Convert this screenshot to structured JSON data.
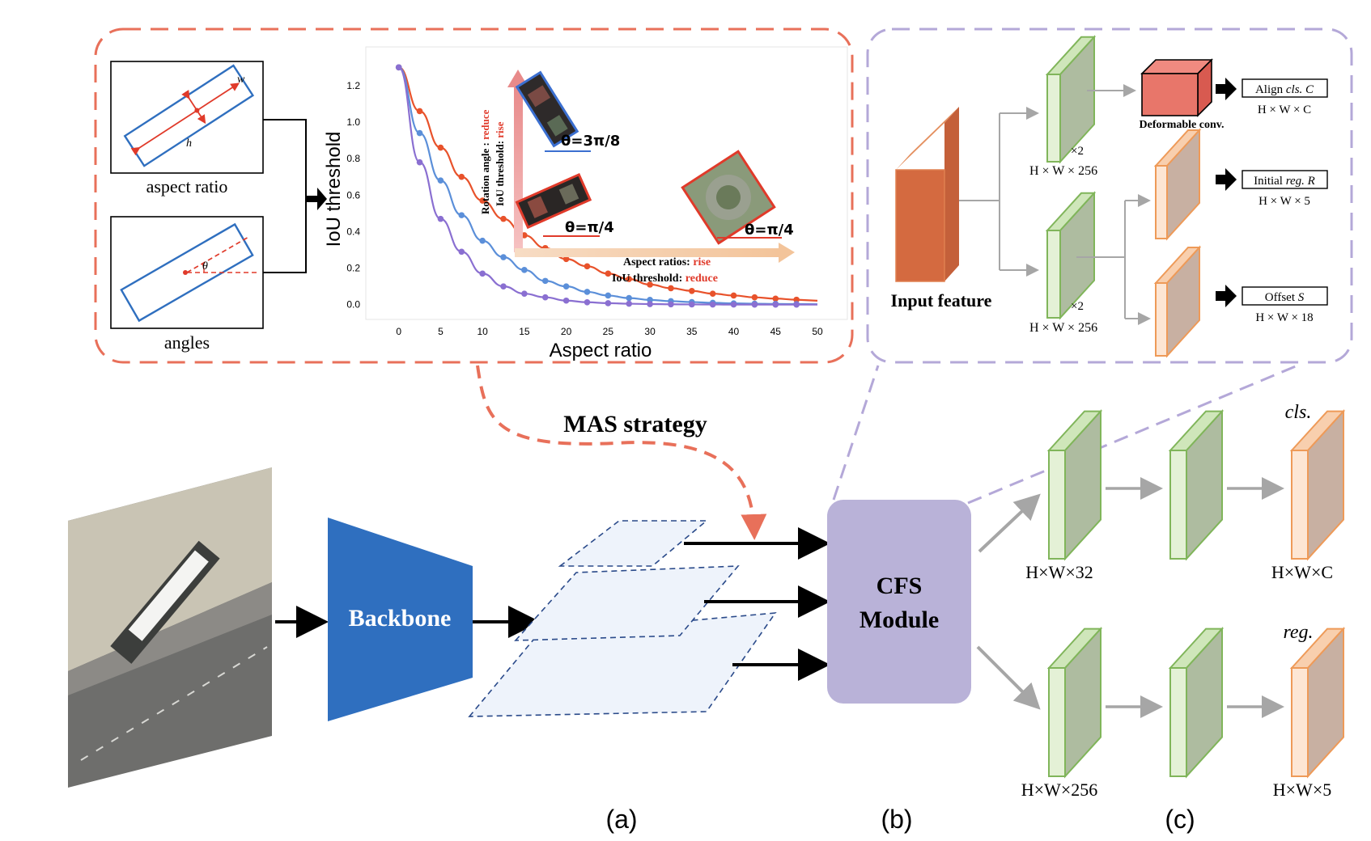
{
  "mas_panel": {
    "aspect_ratio_label": "aspect ratio",
    "angles_label": "angles",
    "box_w": "w",
    "box_h": "h",
    "theta": "θ",
    "rot_label_1": "Rotation angle : ",
    "rot_label_1_red": "reduce",
    "rot_label_2": "IoU threshold: ",
    "rot_label_2_red": "rise",
    "ar_label_1": "Aspect ratios: ",
    "ar_label_1_red": "rise",
    "ar_label_2": "IoU threshold: ",
    "ar_label_2_red": "reduce",
    "theta_1": "θ=3π/8",
    "theta_2": "θ=π/4",
    "theta_3": "θ=π/4"
  },
  "chart_data": {
    "type": "line",
    "xlabel": "Aspect ratio",
    "ylabel": "IoU threshold",
    "xlim": [
      -2,
      50
    ],
    "ylim": [
      -0.05,
      1.35
    ],
    "xticks": [
      "0",
      "5",
      "10",
      "15",
      "20",
      "25",
      "30",
      "35",
      "40",
      "45",
      "50"
    ],
    "yticks": [
      "0.0",
      "0.2",
      "0.4",
      "0.6",
      "0.8",
      "1.0",
      "1.2"
    ],
    "grid": false,
    "x": [
      0,
      2.5,
      5,
      7.5,
      10,
      12.5,
      15,
      17.5,
      20,
      22.5,
      25,
      27.5,
      30,
      32.5,
      35,
      37.5,
      40,
      42.5,
      45,
      47.5
    ],
    "series": [
      {
        "color": "#e8522b",
        "values": [
          1.3,
          1.06,
          0.86,
          0.7,
          0.57,
          0.47,
          0.38,
          0.31,
          0.25,
          0.21,
          0.17,
          0.14,
          0.11,
          0.09,
          0.075,
          0.06,
          0.05,
          0.04,
          0.033,
          0.027
        ]
      },
      {
        "color": "#5b8fd9",
        "values": [
          1.3,
          0.94,
          0.68,
          0.49,
          0.35,
          0.26,
          0.19,
          0.13,
          0.1,
          0.07,
          0.05,
          0.036,
          0.026,
          0.019,
          0.014,
          0.01,
          0.007,
          0.005,
          0.004,
          0.003
        ]
      },
      {
        "color": "#8a6fd1",
        "values": [
          1.3,
          0.78,
          0.47,
          0.29,
          0.17,
          0.1,
          0.06,
          0.04,
          0.022,
          0.013,
          0.008,
          0.005,
          0.003,
          0.002,
          0.0012,
          0.0007,
          0.0004,
          0.0003,
          0.0002,
          0.0001
        ]
      }
    ]
  },
  "cfs_panel": {
    "input_feature": "Input feature",
    "x2_a": "×2",
    "x2_b": "×2",
    "dim_top": "H × W × 256",
    "dim_bottom": "H × W × 256",
    "deformable": "Deformable conv.",
    "align_prefix": "Align ",
    "align_italic": "cls. C",
    "align_dim": "H × W × C",
    "initial_prefix": "Initial ",
    "initial_italic": "reg. R",
    "initial_dim": "H × W × 5",
    "offset_prefix": "Offset ",
    "offset_italic": "S",
    "offset_dim": "H × W × 18"
  },
  "main": {
    "mas_strategy": "MAS strategy",
    "backbone": "Backbone",
    "cfs_line1": "CFS",
    "cfs_line2": "Module"
  },
  "heads": {
    "cls_label": "cls.",
    "reg_label": "reg.",
    "dim_1": "H×W×32",
    "dim_2": "H×W×C",
    "dim_3": "H×W×256",
    "dim_4": "H×W×5"
  },
  "captions": {
    "a": "(a)",
    "b": "(b)",
    "c": "(c)"
  },
  "colors": {
    "red_dash": "#e8705a",
    "purple_dash": "#b4a8d8",
    "backbone_blue": "#2f6fbf",
    "cfs_purple": "#b9b2d8",
    "green_block": "#8fbf6a",
    "orange_block": "#f0a068",
    "red_text": "#e03a2a"
  }
}
